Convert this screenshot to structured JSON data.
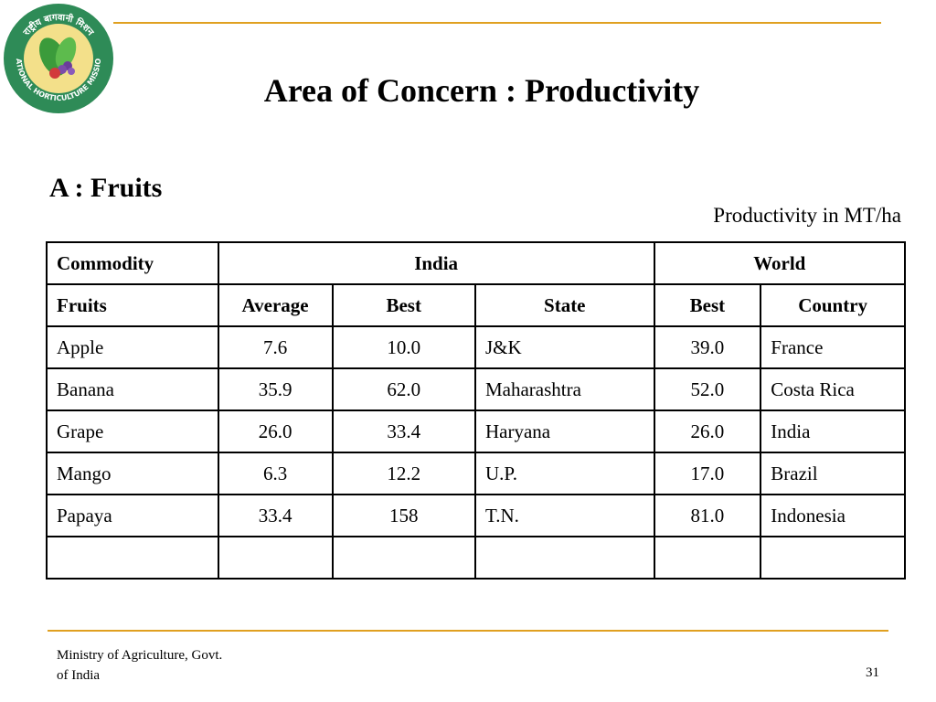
{
  "logo": {
    "label": "NATIONAL HORTICULTURE MISSION",
    "hindi_label": "राष्ट्रीय बागवानी मिशन",
    "colors": {
      "ring": "#2E8B57",
      "inner": "#F3E08A",
      "leaf": "#4CA64C"
    }
  },
  "slide": {
    "title": "Area of  Concern : Productivity",
    "subtitle": "A : Fruits",
    "unit_note": "Productivity in MT/ha",
    "accent_color": "#E0A020"
  },
  "table": {
    "group_headers": {
      "commodity": "Commodity",
      "india": "India",
      "world": "World"
    },
    "sub_headers": [
      "Fruits",
      "Average",
      "Best",
      "State",
      "Best",
      "Country"
    ],
    "rows": [
      [
        "Apple",
        "7.6",
        "10.0",
        "J&K",
        "39.0",
        "France"
      ],
      [
        "Banana",
        "35.9",
        "62.0",
        "Maharashtra",
        "52.0",
        "Costa Rica"
      ],
      [
        "Grape",
        "26.0",
        "33.4",
        "Haryana",
        "26.0",
        "India"
      ],
      [
        "Mango",
        "6.3",
        "12.2",
        "U.P.",
        "17.0",
        "Brazil"
      ],
      [
        "Papaya",
        "33.4",
        "158",
        "T.N.",
        "81.0",
        "Indonesia"
      ],
      [
        "",
        "",
        "",
        "",
        "",
        ""
      ]
    ]
  },
  "footer": {
    "org_line1": "Ministry of  Agriculture, Govt.",
    "org_line2": "of  India",
    "page_number": "31"
  }
}
